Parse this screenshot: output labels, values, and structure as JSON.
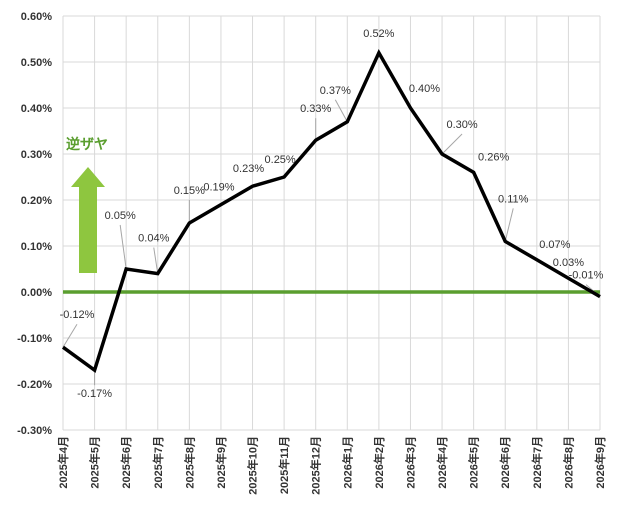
{
  "chart_data": {
    "type": "line",
    "title": "",
    "xlabel": "",
    "ylabel": "",
    "categories": [
      "2025年4月",
      "2025年5月",
      "2025年6月",
      "2025年7月",
      "2025年8月",
      "2025年9月",
      "2025年10月",
      "2025年11月",
      "2025年12月",
      "2026年1月",
      "2026年2月",
      "2026年3月",
      "2026年4月",
      "2026年5月",
      "2026年6月",
      "2026年7月",
      "2026年8月",
      "2026年9月"
    ],
    "series": [
      {
        "values": [
          -0.12,
          -0.17,
          0.05,
          0.04,
          0.15,
          0.19,
          0.23,
          0.25,
          0.33,
          0.37,
          0.52,
          0.4,
          0.3,
          0.26,
          0.11,
          0.07,
          0.03,
          -0.01
        ],
        "data_labels": [
          "-0.12%",
          "-0.17%",
          "0.05%",
          "0.04%",
          "0.15%",
          "0.19%",
          "0.23%",
          "0.25%",
          "0.33%",
          "0.37%",
          "0.52%",
          "0.40%",
          "0.30%",
          "0.26%",
          "0.11%",
          "0.07%",
          "0.03%",
          "-0.01%"
        ],
        "color": "#000000"
      }
    ],
    "ylim": [
      -0.3,
      0.6
    ],
    "ytick_values": [
      -0.3,
      -0.2,
      -0.1,
      0.0,
      0.1,
      0.2,
      0.3,
      0.4,
      0.5,
      0.6
    ],
    "ytick_labels": [
      "-0.30%",
      "-0.20%",
      "-0.10%",
      "0.00%",
      "0.10%",
      "0.20%",
      "0.30%",
      "0.40%",
      "0.50%",
      "0.60%"
    ],
    "zero_line_color": "#5a9e2f",
    "grid": true,
    "legend": "none",
    "annotation": {
      "text": "逆ザヤ",
      "color": "#5a9e2f",
      "arrow": "up",
      "arrow_color": "#8ec63f"
    }
  }
}
